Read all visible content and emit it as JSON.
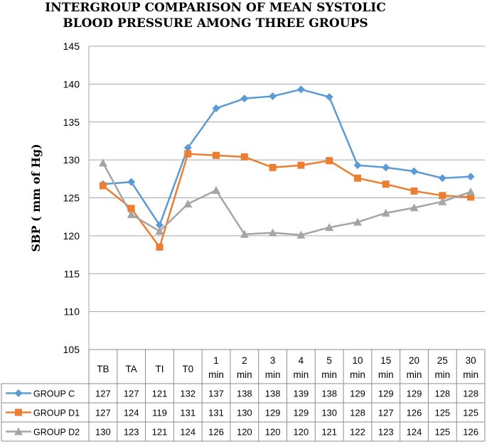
{
  "chart_data": {
    "type": "line",
    "title_lines": [
      "INTERGROUP COMPARISON OF MEAN SYSTOLIC",
      "BLOOD PRESSURE AMONG THREE GROUPS"
    ],
    "ylabel": "SBP ( mm of Hg)",
    "xlabel": "",
    "ylim": [
      105,
      145
    ],
    "yticks": [
      105,
      110,
      115,
      120,
      125,
      130,
      135,
      140,
      145
    ],
    "grid": true,
    "categories": [
      [
        "TB"
      ],
      [
        "TA"
      ],
      [
        "TI"
      ],
      [
        "T0"
      ],
      [
        "1",
        "min"
      ],
      [
        "2",
        "min"
      ],
      [
        "3",
        "min"
      ],
      [
        "4",
        "min"
      ],
      [
        "5",
        "min"
      ],
      [
        "10",
        "min"
      ],
      [
        "15",
        "min"
      ],
      [
        "20",
        "min"
      ],
      [
        "25",
        "min"
      ],
      [
        "30",
        "min"
      ]
    ],
    "series": [
      {
        "name": "GROUP C",
        "color": "#5b9bd5",
        "marker": "diamond",
        "values": [
          126.8,
          127.1,
          121.4,
          131.6,
          136.8,
          138.1,
          138.4,
          139.3,
          138.3,
          129.3,
          129.0,
          128.5,
          127.6,
          127.8
        ],
        "table_values": [
          "127",
          "127",
          "121",
          "132",
          "137",
          "138",
          "138",
          "139",
          "138",
          "129",
          "129",
          "129",
          "128",
          "128"
        ]
      },
      {
        "name": "GROUP D1",
        "color": "#ed7d31",
        "marker": "square",
        "values": [
          126.6,
          123.6,
          118.5,
          130.8,
          130.6,
          130.4,
          129.0,
          129.3,
          129.9,
          127.6,
          126.8,
          125.9,
          125.3,
          125.1
        ],
        "table_values": [
          "127",
          "124",
          "119",
          "131",
          "131",
          "130",
          "129",
          "129",
          "130",
          "128",
          "127",
          "126",
          "125",
          "125"
        ]
      },
      {
        "name": "GROUP D2",
        "color": "#a5a5a5",
        "marker": "triangle",
        "values": [
          129.6,
          122.8,
          120.6,
          124.2,
          126.0,
          120.2,
          120.4,
          120.1,
          121.1,
          121.8,
          123.0,
          123.7,
          124.5,
          125.8
        ],
        "table_values": [
          "130",
          "123",
          "121",
          "124",
          "126",
          "120",
          "120",
          "120",
          "121",
          "122",
          "123",
          "124",
          "125",
          "126"
        ]
      }
    ],
    "legend_placement": "data-table-left"
  }
}
